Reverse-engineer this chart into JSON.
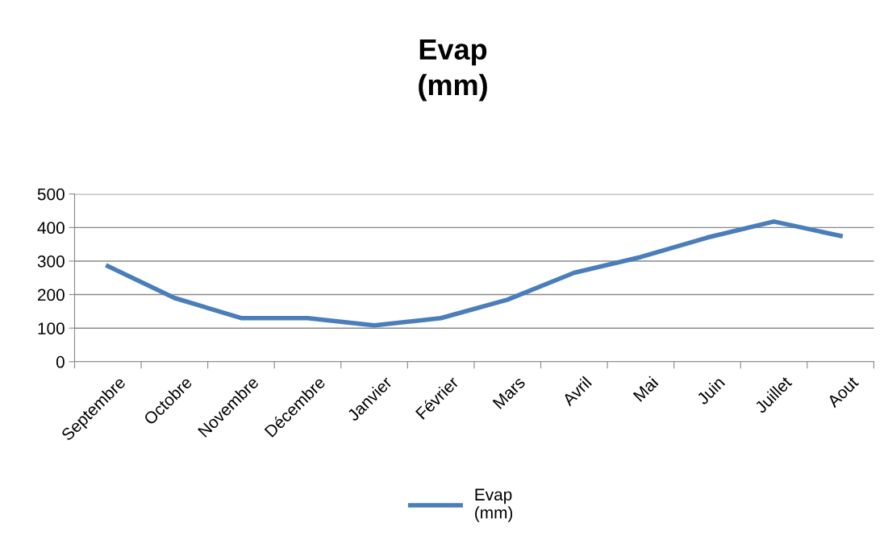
{
  "chart_data": {
    "type": "line",
    "title": "Evap\n(mm)",
    "categories": [
      "Septembre",
      "Octobre",
      "Novembre",
      "Décembre",
      "Janvier",
      "Février",
      "Mars",
      "Avril",
      "Mai",
      "Juin",
      "Juillet",
      "Aout"
    ],
    "series": [
      {
        "name": "Evap\n(mm)",
        "color": "#4a7ebb",
        "values": [
          285,
          190,
          130,
          130,
          108,
          130,
          185,
          265,
          312,
          370,
          418,
          375
        ]
      }
    ],
    "ylim": [
      0,
      500
    ],
    "yticks": [
      0,
      100,
      200,
      300,
      400,
      500
    ],
    "grid": "y",
    "legend": "bottom",
    "marker": "none",
    "line_style": "solid"
  }
}
